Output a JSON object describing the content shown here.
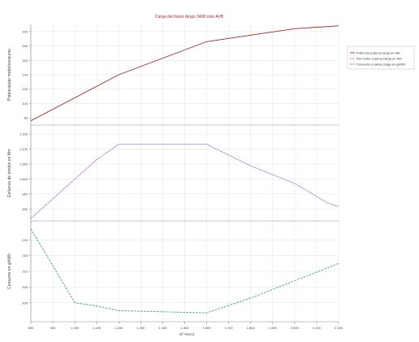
{
  "chart_data": {
    "type": "line",
    "title": "Carga del motor Aingo 3408 mon AVB",
    "xlabel": "Nº Revol",
    "x_ticks": [
      "800",
      "900",
      "1.000",
      "1.100",
      "1.200",
      "1.300",
      "1.400",
      "1.500",
      "1.600",
      "1.700",
      "1.800",
      "1.900",
      "2.000",
      "2.100",
      "2.200"
    ],
    "x_range": [
      800,
      2200
    ],
    "grid": true,
    "legend_position": "right",
    "legend": [
      {
        "label": "Potencia a plena carga en kW",
        "color": "#9c2a2a"
      },
      {
        "label": "Par motor a plena carga en Nm",
        "color": "#7b2fb0"
      },
      {
        "label": "Consumo a plena carga en g/kWh",
        "color": "#3a9a84"
      }
    ],
    "panels": [
      {
        "ylabel": "Potencia/par motor/consumo",
        "ylim": [
          70,
          210
        ],
        "yticks": [
          80,
          100,
          120,
          140,
          160,
          180,
          200
        ],
        "series": [
          {
            "color": "#9c2a2a",
            "style": "solid",
            "x": [
              800,
              1200,
              1600,
              2000,
              2200
            ],
            "y": [
              76,
              140,
              186,
              204,
              208
            ]
          }
        ]
      },
      {
        "ylabel": "Esfuerzo de torsión en Nm",
        "ylim": [
          860,
          1180
        ],
        "yticks": [
          900,
          950,
          1000,
          1050,
          1100,
          1150
        ],
        "series": [
          {
            "color": "#7b2fb0",
            "style": "dotted",
            "x": [
              800,
              1000,
              1100,
              1200,
              1600,
              1800,
              2000,
              2150,
              2200
            ],
            "y": [
              868,
              1000,
              1065,
              1116,
              1116,
              1044,
              985,
              920,
              908
            ]
          }
        ]
      },
      {
        "ylabel": "Consumo en g/kWh",
        "ylim": [
          194,
          226
        ],
        "yticks": [
          200,
          205,
          210,
          215,
          220
        ],
        "series": [
          {
            "color": "#3a9a84",
            "style": "dashed",
            "x": [
              800,
              1000,
              1100,
              1200,
              1600,
              1800,
              2000,
              2200
            ],
            "y": [
              223.5,
              200,
              199,
              197.5,
              196.8,
              201.5,
              207,
              212.5
            ]
          }
        ]
      }
    ]
  }
}
